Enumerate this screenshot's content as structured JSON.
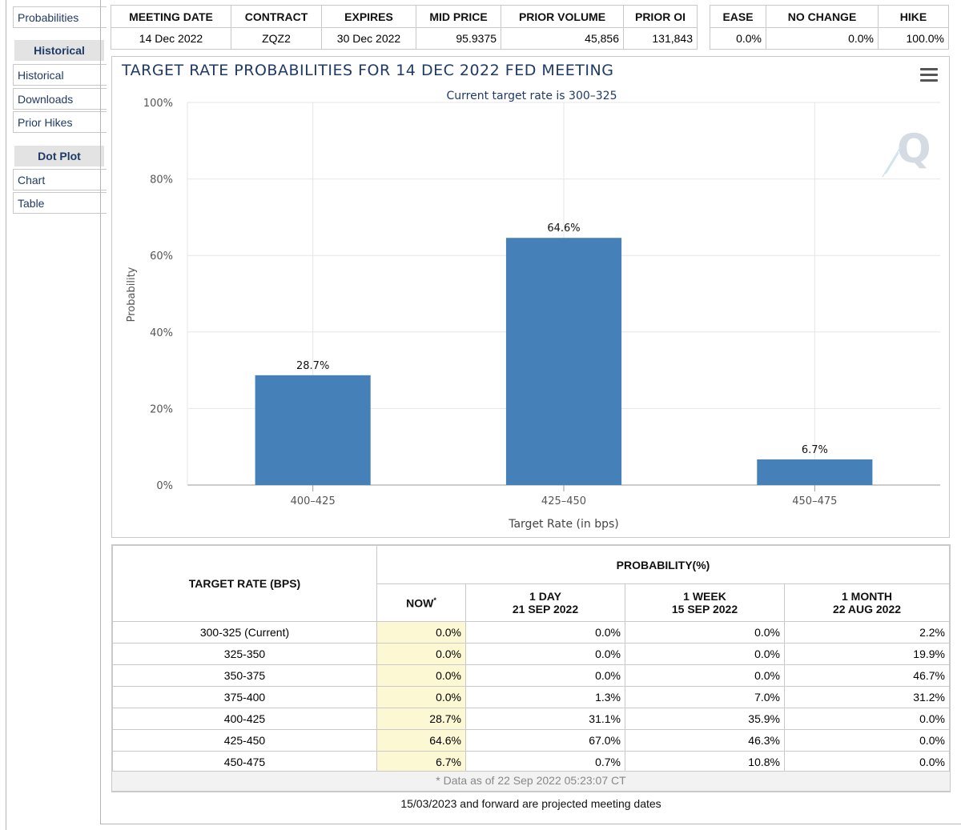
{
  "sidebar": {
    "probabilities": "Probabilities",
    "historical_heading": "Historical",
    "historical": "Historical",
    "downloads": "Downloads",
    "prior_hikes": "Prior Hikes",
    "dotplot_heading": "Dot Plot",
    "chart": "Chart",
    "table": "Table"
  },
  "info": {
    "headers": [
      "MEETING DATE",
      "CONTRACT",
      "EXPIRES",
      "MID PRICE",
      "PRIOR VOLUME",
      "PRIOR OI"
    ],
    "values": [
      "14 Dec 2022",
      "ZQZ2",
      "30 Dec 2022",
      "95.9375",
      "45,856",
      "131,843"
    ]
  },
  "summary": {
    "headers": [
      "EASE",
      "NO CHANGE",
      "HIKE"
    ],
    "values": [
      "0.0%",
      "0.0%",
      "100.0%"
    ]
  },
  "chart_data": {
    "type": "bar",
    "title": "TARGET RATE PROBABILITIES FOR 14 DEC 2022 FED MEETING",
    "subtitle": "Current target rate is 300–325",
    "categories": [
      "400–425",
      "425–450",
      "450–475"
    ],
    "values": [
      28.7,
      64.6,
      6.7
    ],
    "data_labels": [
      "28.7%",
      "64.6%",
      "6.7%"
    ],
    "xlabel": "Target Rate (in bps)",
    "ylabel": "Probability",
    "ylim": [
      0,
      100
    ],
    "yticks": [
      0,
      20,
      40,
      60,
      80,
      100
    ],
    "ytick_labels": [
      "0%",
      "20%",
      "40%",
      "60%",
      "80%",
      "100%"
    ],
    "grid": true,
    "bar_color": "#4680b8",
    "watermark": "Q"
  },
  "probability_table": {
    "rate_header": "TARGET RATE (BPS)",
    "prob_header": "PROBABILITY(%)",
    "now_header": "NOW",
    "now_marker": "*",
    "day_header": "1 DAY",
    "day_date": "21 SEP 2022",
    "week_header": "1 WEEK",
    "week_date": "15 SEP 2022",
    "month_header": "1 MONTH",
    "month_date": "22 AUG 2022",
    "rows": [
      {
        "rate": "300-325 (Current)",
        "now": "0.0%",
        "day": "0.0%",
        "week": "0.0%",
        "month": "2.2%"
      },
      {
        "rate": "325-350",
        "now": "0.0%",
        "day": "0.0%",
        "week": "0.0%",
        "month": "19.9%"
      },
      {
        "rate": "350-375",
        "now": "0.0%",
        "day": "0.0%",
        "week": "0.0%",
        "month": "46.7%"
      },
      {
        "rate": "375-400",
        "now": "0.0%",
        "day": "1.3%",
        "week": "7.0%",
        "month": "31.2%"
      },
      {
        "rate": "400-425",
        "now": "28.7%",
        "day": "31.1%",
        "week": "35.9%",
        "month": "0.0%"
      },
      {
        "rate": "425-450",
        "now": "64.6%",
        "day": "67.0%",
        "week": "46.3%",
        "month": "0.0%"
      },
      {
        "rate": "450-475",
        "now": "6.7%",
        "day": "0.7%",
        "week": "10.8%",
        "month": "0.0%"
      }
    ],
    "footnote": "* Data as of 22 Sep 2022 05:23:07 CT"
  },
  "projected_note": "15/03/2023 and forward are projected meeting dates"
}
